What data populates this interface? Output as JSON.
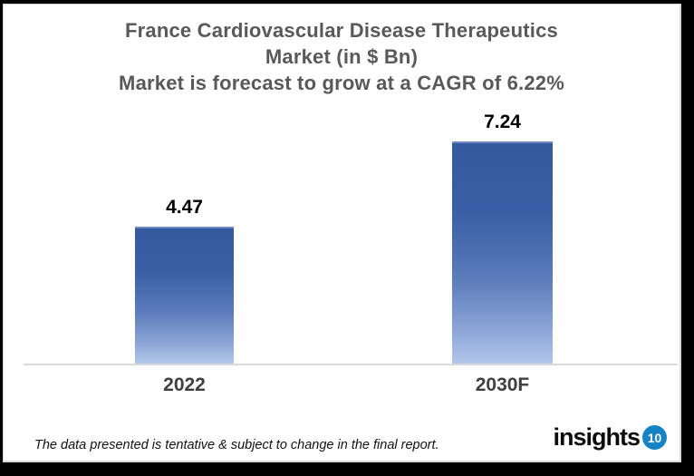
{
  "title": {
    "line1": "France Cardiovascular Disease Therapeutics",
    "line2": "Market (in $ Bn)",
    "line3": "Market is forecast to grow at a CAGR of 6.22%"
  },
  "chart_data": {
    "type": "bar",
    "title": "France Cardiovascular Disease Therapeutics Market (in $ Bn)",
    "subtitle": "Market is forecast to grow at a CAGR of 6.22%",
    "cagr": "6.22%",
    "categories": [
      "2022",
      "2030F"
    ],
    "values": [
      4.47,
      7.24
    ],
    "value_labels": [
      "4.47",
      "7.24"
    ],
    "xlabel": "",
    "ylabel": "",
    "ylim": [
      0,
      8
    ],
    "grid": false,
    "legend": false,
    "bar_gradient_top": "#35599e",
    "bar_gradient_bottom": "#b3c7ea",
    "axis_line_color": "#d9d9d9",
    "title_color": "#595959",
    "value_label_color": "#000000",
    "category_label_color": "#3f3f3f"
  },
  "footer": {
    "note": "The data presented is tentative & subject to change in the final report.",
    "logo_text": "insights",
    "logo_badge": "10",
    "logo_badge_color": "#1583c5"
  }
}
